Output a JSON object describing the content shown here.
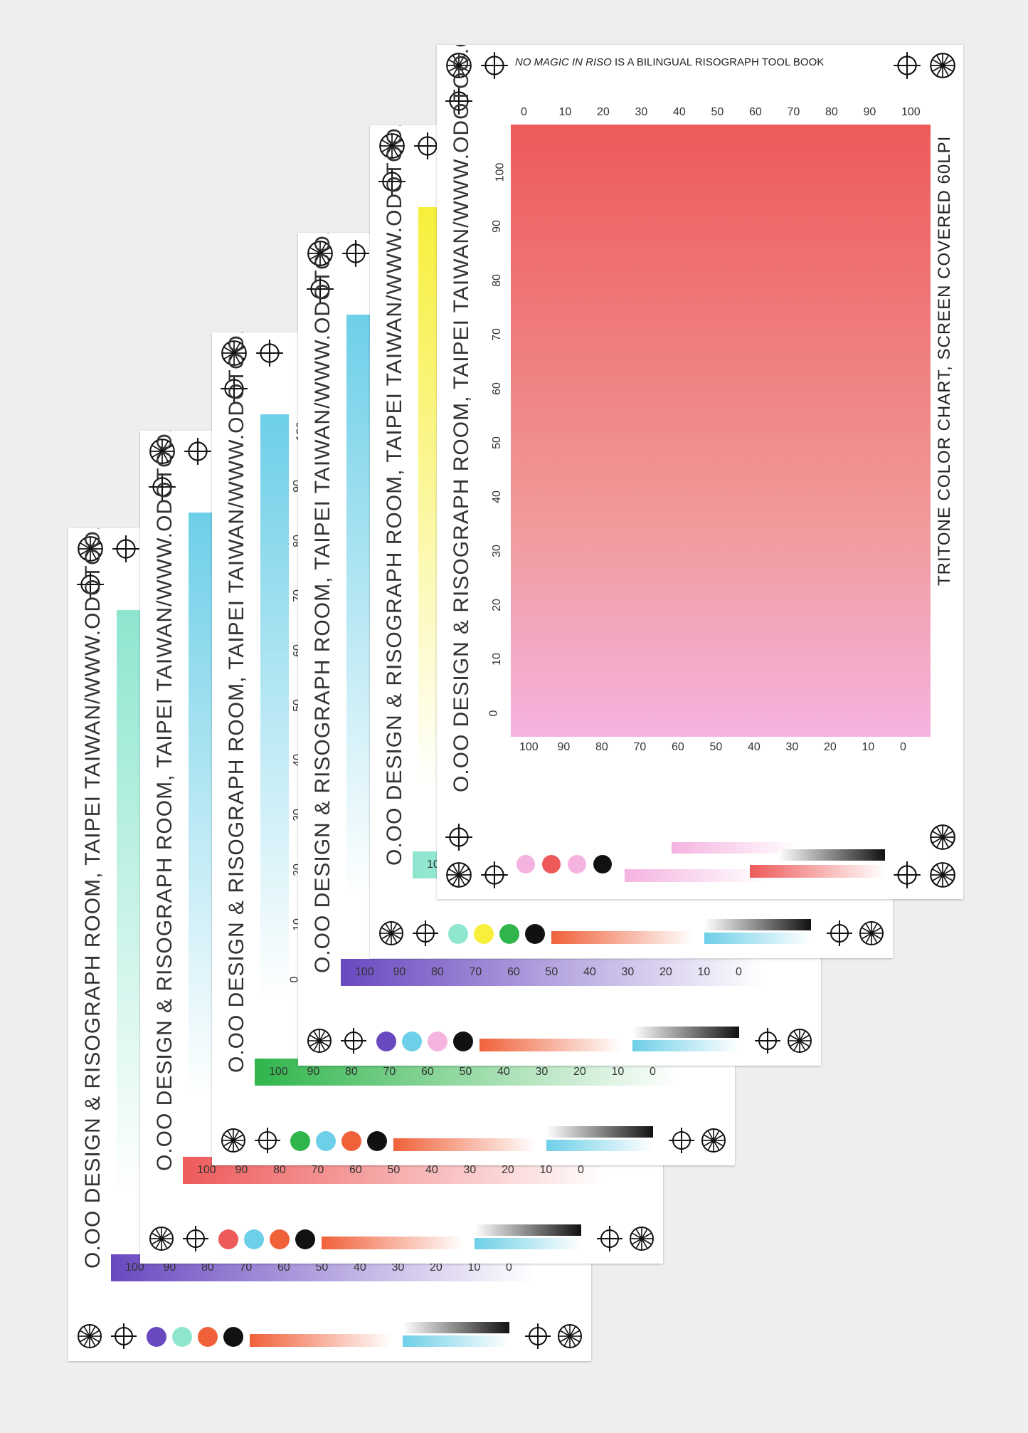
{
  "header_text": {
    "italic": "NO MAGIC IN RISO",
    "rest": " IS A BILINGUAL RISOGRAPH TOOL BOOK"
  },
  "side_text": "O.OO DESIGN & RISOGRAPH ROOM, TAIPEI TAIWAN/WWW.ODOTOO.COM",
  "right_text": "TRITONE COLOR CHART, SCREEN COVERED 60LPI",
  "scale_up": [
    "0",
    "10",
    "20",
    "30",
    "40",
    "50",
    "60",
    "70",
    "80",
    "90",
    "100"
  ],
  "scale_down": [
    "100",
    "90",
    "80",
    "70",
    "60",
    "50",
    "40",
    "30",
    "20",
    "10",
    "0"
  ],
  "colors": {
    "red": "#ee5a5a",
    "pink": "#f5b3e0",
    "cyan": "#6ecfe8",
    "mint": "#8ee6cf",
    "green": "#2fb54b",
    "yellow": "#f7ef3b",
    "purple": "#6a48c0",
    "orange": "#f0613a",
    "black": "#111111"
  },
  "cards": [
    {
      "name": "card-1",
      "main": "mint",
      "bottom": "purple",
      "dots": [
        "purple",
        "mint",
        "orange",
        "black"
      ]
    },
    {
      "name": "card-2",
      "main": "cyan",
      "bottom": "red",
      "dots": [
        "red",
        "cyan",
        "orange",
        "black"
      ]
    },
    {
      "name": "card-3",
      "main": "cyan",
      "bottom": "green",
      "dots": [
        "green",
        "cyan",
        "orange",
        "black"
      ]
    },
    {
      "name": "card-4",
      "main": "cyan",
      "bottom": "purple",
      "dots": [
        "purple",
        "cyan",
        "pink",
        "black"
      ]
    },
    {
      "name": "card-5",
      "main": "yellow",
      "bottom": "mint",
      "dots": [
        "mint",
        "yellow",
        "green",
        "black"
      ]
    },
    {
      "name": "card-6",
      "main": "red",
      "bottom": "pink",
      "dots": [
        "pink",
        "red",
        "pink",
        "black"
      ]
    }
  ]
}
